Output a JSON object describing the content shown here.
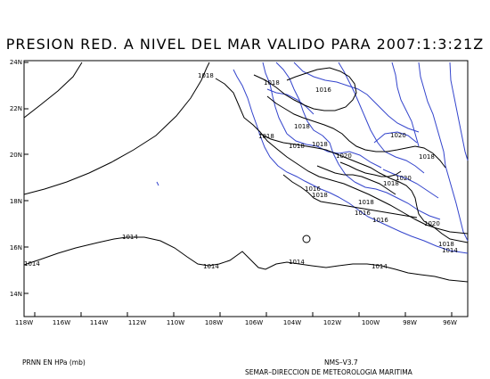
{
  "title": "PRESION RED. A NIVEL DEL MAR VALIDO PARA 2007:1:3:21Z",
  "lat_labels": [
    "24N",
    "22N",
    "20N",
    "18N",
    "16N",
    "14N"
  ],
  "lon_labels": [
    "118W",
    "116W",
    "114W",
    "112W",
    "110W",
    "108W",
    "106W",
    "104W",
    "102W",
    "100W",
    "98W",
    "96W"
  ],
  "isobar_labels": {
    "l1018_a": "1018",
    "l1018_b": "1018",
    "l1016_a": "1016",
    "l1018_c": "1018",
    "l1018_d": "1018",
    "l1018_e": "1018",
    "l1018_f": "1018",
    "l1020_a": "1020",
    "l1020_b": "1020",
    "l1018_g": "1018",
    "l1016_b": "1016",
    "l1018_h": "1018",
    "l1020_c": "1020",
    "l1018_i": "1018",
    "l1018_j": "1018",
    "l1016_c": "1016",
    "l1016_d": "1016",
    "l1020_d": "1020",
    "l1018_k": "1018",
    "l1014_a": "1014",
    "l1014_b": "1014",
    "l1014_c": "1014",
    "l1014_d": "1014",
    "l1014_e": "1014",
    "l1014_f": "1014"
  },
  "footer": {
    "units": "PRNN EN HPa (mb)",
    "version": "NMS–V3.7",
    "agency": "SEMAR–DIRECCION DE METEOROLOGIA MARITIMA"
  },
  "colors": {
    "coast": "#3344cc",
    "isobar": "#000000"
  }
}
